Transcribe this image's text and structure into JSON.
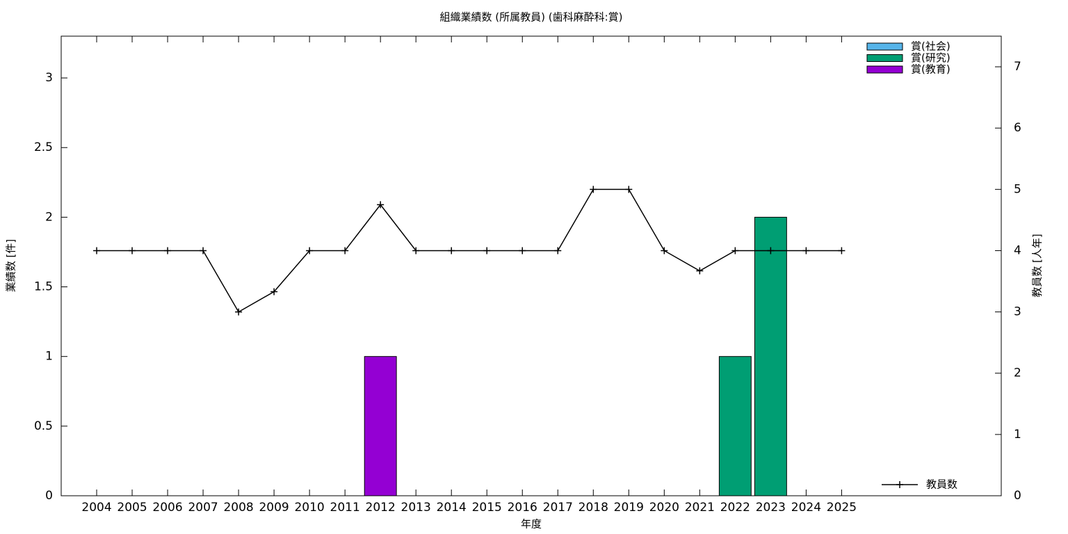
{
  "chart_data": {
    "type": "bar",
    "stacked": true,
    "title": "組織業績数 (所属教員) (歯科麻酔科:賞)",
    "xlabel": "年度",
    "ylabel": "業績数 [件]",
    "y2label": "教員数 [人年]",
    "x": [
      2004,
      2005,
      2006,
      2007,
      2008,
      2009,
      2010,
      2011,
      2012,
      2013,
      2014,
      2015,
      2016,
      2017,
      2018,
      2019,
      2020,
      2021,
      2022,
      2023,
      2024,
      2025
    ],
    "xlim": [
      2003,
      2029.5
    ],
    "ylim": [
      0,
      3.3
    ],
    "yticks": [
      0,
      0.5,
      1,
      1.5,
      2,
      2.5,
      3
    ],
    "y2lim": [
      0,
      7.5
    ],
    "y2ticks": [
      0,
      1,
      2,
      3,
      4,
      5,
      6,
      7
    ],
    "series": [
      {
        "name": "賞(社会)",
        "type": "bar",
        "color": "#56b4e9",
        "values": [
          0,
          0,
          0,
          0,
          0,
          0,
          0,
          0,
          0,
          0,
          0,
          0,
          0,
          0,
          0,
          0,
          0,
          0,
          0,
          0,
          0,
          0
        ]
      },
      {
        "name": "賞(研究)",
        "type": "bar",
        "color": "#009e73",
        "values": [
          0,
          0,
          0,
          0,
          0,
          0,
          0,
          0,
          0,
          0,
          0,
          0,
          0,
          0,
          0,
          0,
          0,
          0,
          1,
          2,
          0,
          0
        ]
      },
      {
        "name": "賞(教育)",
        "type": "bar",
        "color": "#9400d3",
        "values": [
          0,
          0,
          0,
          0,
          0,
          0,
          0,
          0,
          1,
          0,
          0,
          0,
          0,
          0,
          0,
          0,
          0,
          0,
          0,
          0,
          0,
          0
        ]
      },
      {
        "name": "教員数",
        "type": "line",
        "axis": "y2",
        "color": "#000000",
        "values": [
          4,
          4,
          4,
          4,
          3,
          3.33,
          4,
          4,
          4.75,
          4,
          4,
          4,
          4,
          4,
          5,
          5,
          4,
          3.67,
          4,
          4,
          4,
          4
        ]
      }
    ],
    "legend": "top-right",
    "line_legend": "bottom-right"
  }
}
